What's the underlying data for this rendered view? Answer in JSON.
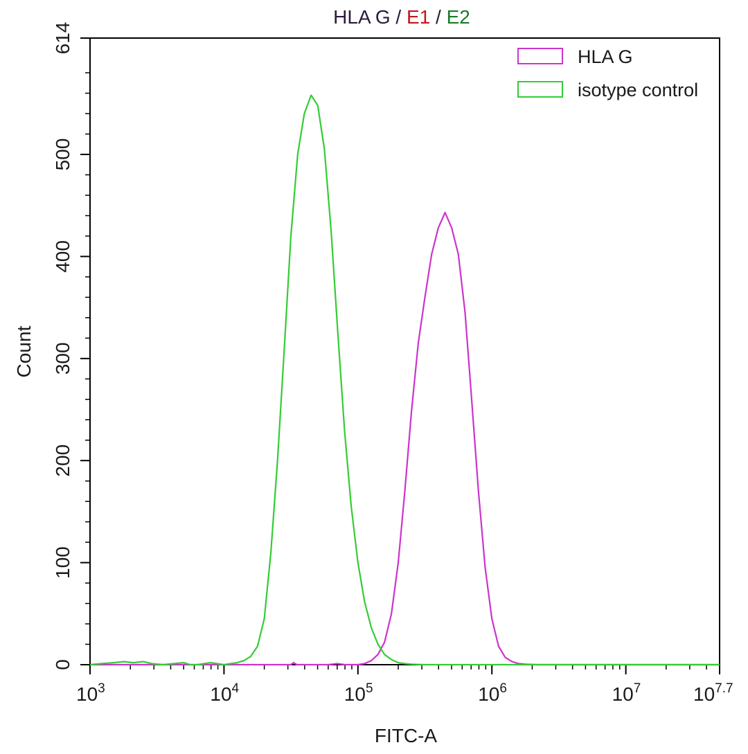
{
  "chart_data": {
    "type": "line",
    "title_parts": [
      {
        "text": "HLA G",
        "color": "#2a1a3a"
      },
      {
        "text": " / ",
        "color": "#2a1a3a"
      },
      {
        "text": "E1",
        "color": "#c0161c"
      },
      {
        "text": " / ",
        "color": "#2a1a3a"
      },
      {
        "text": "E2",
        "color": "#1a7a2a"
      }
    ],
    "xlabel": "FITC-A",
    "ylabel": "Count",
    "x_scale": "log",
    "xlim": [
      1000,
      50118723
    ],
    "ylim": [
      0,
      614
    ],
    "x_ticks": [
      {
        "value": 1000,
        "base": "10",
        "exp": "3"
      },
      {
        "value": 10000,
        "base": "10",
        "exp": "4"
      },
      {
        "value": 100000,
        "base": "10",
        "exp": "5"
      },
      {
        "value": 1000000,
        "base": "10",
        "exp": "6"
      },
      {
        "value": 10000000,
        "base": "10",
        "exp": "7"
      },
      {
        "value": 50118723,
        "base": "10",
        "exp": "7.7"
      }
    ],
    "y_ticks": [
      0,
      100,
      200,
      300,
      400,
      500,
      614
    ],
    "legend_position": "top-right",
    "series": [
      {
        "name": "HLA G",
        "color": "#cc33cc",
        "x": [
          1000,
          31600,
          33000,
          35000,
          60000,
          70000,
          80000,
          100000,
          112000,
          126000,
          141000,
          158000,
          178000,
          200000,
          224000,
          251000,
          282000,
          316000,
          355000,
          398000,
          447000,
          501000,
          562000,
          631000,
          708000,
          794000,
          891000,
          1000000,
          1122000,
          1259000,
          1413000,
          1585000,
          1778000,
          1995000,
          2239000,
          50118723
        ],
        "y": [
          0,
          0,
          2,
          0,
          0,
          1,
          0,
          0,
          1,
          4,
          10,
          22,
          50,
          100,
          170,
          248,
          315,
          360,
          402,
          428,
          443,
          428,
          402,
          345,
          258,
          170,
          95,
          45,
          18,
          7,
          3,
          1,
          0.5,
          0.2,
          0,
          0
        ]
      },
      {
        "name": "isotope control",
        "name_display": "isotype control",
        "color": "#33cc33",
        "x": [
          1000,
          1200,
          1500,
          1800,
          2100,
          2500,
          2900,
          3500,
          4200,
          5000,
          5600,
          6300,
          7100,
          7900,
          8900,
          10000,
          11200,
          12600,
          14100,
          15800,
          17800,
          20000,
          22400,
          25100,
          28200,
          31600,
          35500,
          39800,
          44700,
          50100,
          56200,
          63100,
          70800,
          79400,
          89100,
          100000,
          112000,
          126000,
          141000,
          158000,
          178000,
          200000,
          224000,
          251000,
          282000,
          316000,
          50118723
        ],
        "y": [
          0,
          1,
          2,
          3,
          2,
          3,
          1,
          0,
          1,
          2,
          0,
          0,
          1,
          2,
          1,
          0,
          1,
          2,
          4,
          8,
          18,
          45,
          110,
          200,
          310,
          420,
          500,
          540,
          558,
          548,
          505,
          425,
          325,
          230,
          155,
          100,
          62,
          36,
          20,
          10,
          5,
          2,
          1,
          0.5,
          0.2,
          0,
          0
        ]
      }
    ]
  }
}
